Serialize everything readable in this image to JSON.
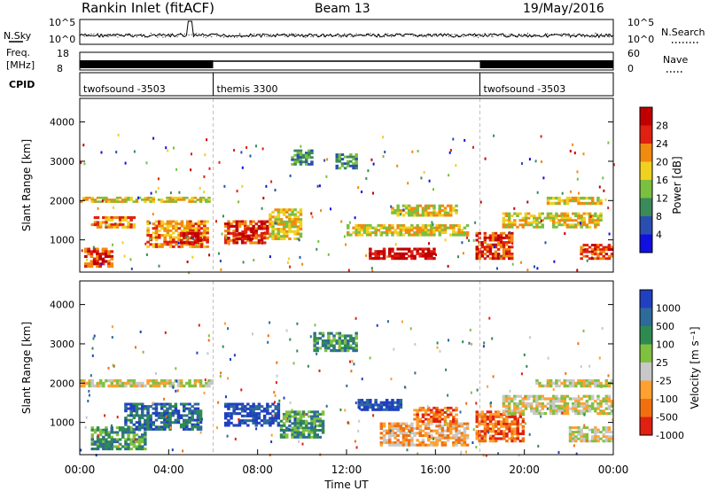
{
  "header": {
    "title": "Rankin Inlet (fitACF)",
    "beam": "Beam 13",
    "date": "19/May/2016"
  },
  "chart_data": [
    {
      "type": "line",
      "panel": "noise",
      "left_label": "N.Sky",
      "right_label": "N.Search",
      "left_ticks": [
        "10^5",
        "10^0"
      ],
      "right_ticks": [
        "10^5",
        "10^0"
      ],
      "note": "sky noise (solid) and search noise (dotted), roughly constant near 10^2 with spikes near 04:50"
    },
    {
      "type": "line",
      "panel": "frequency",
      "left_label_lines": [
        "Freq.",
        "[MHz]"
      ],
      "right_label": "Nave",
      "left_ticks": [
        "18",
        "8"
      ],
      "right_ticks": [
        "60",
        "0"
      ],
      "segments": [
        {
          "start": "00:00",
          "end": "06:00",
          "style": "dense"
        },
        {
          "start": "06:00",
          "end": "18:00",
          "style": "line"
        },
        {
          "start": "18:00",
          "end": "24:00",
          "style": "dense"
        }
      ]
    },
    {
      "type": "table",
      "panel": "cpid",
      "label": "CPID",
      "modes": [
        {
          "name": "twofsound -3503",
          "start": 0,
          "end": 6
        },
        {
          "name": "themis 3300",
          "start": 6,
          "end": 18
        },
        {
          "name": "twofsound -3503",
          "start": 18,
          "end": 24
        }
      ]
    },
    {
      "type": "heatmap",
      "panel": "power",
      "ylabel": "Slant Range [km]",
      "yticks": [
        1000,
        2000,
        3000,
        4000
      ],
      "ylim": [
        180,
        4600
      ],
      "xlim": [
        0,
        24
      ],
      "colorbar_label": "Power [dB]",
      "colorbar_ticks": [
        "4",
        "8",
        "12",
        "16",
        "20",
        "24",
        "28"
      ],
      "colors": [
        "#1010e0",
        "#2a4fb0",
        "#3b8a5a",
        "#7abf40",
        "#f0d020",
        "#f08a10",
        "#e02010",
        "#c00000"
      ],
      "regions": [
        {
          "t0": 0.2,
          "t1": 1.5,
          "r0": 300,
          "r1": 800,
          "level": 6
        },
        {
          "t0": 0.5,
          "t1": 2.5,
          "r0": 1300,
          "r1": 1600,
          "level": 5
        },
        {
          "t0": 0.0,
          "t1": 6.0,
          "r0": 1950,
          "r1": 2100,
          "level": 4
        },
        {
          "t0": 3.0,
          "t1": 5.8,
          "r0": 800,
          "r1": 1500,
          "level": 5
        },
        {
          "t0": 4.5,
          "t1": 5.5,
          "r0": 900,
          "r1": 1200,
          "level": 7
        },
        {
          "t0": 6.5,
          "t1": 8.5,
          "r0": 900,
          "r1": 1500,
          "level": 6
        },
        {
          "t0": 7.0,
          "t1": 7.8,
          "r0": 1000,
          "r1": 1300,
          "level": 7
        },
        {
          "t0": 8.5,
          "t1": 10.0,
          "r0": 1000,
          "r1": 1800,
          "level": 4
        },
        {
          "t0": 9.5,
          "t1": 10.5,
          "r0": 2900,
          "r1": 3300,
          "level": 2
        },
        {
          "t0": 11.5,
          "t1": 12.5,
          "r0": 2800,
          "r1": 3200,
          "level": 2
        },
        {
          "t0": 12.0,
          "t1": 17.5,
          "r0": 1100,
          "r1": 1400,
          "level": 4
        },
        {
          "t0": 13.0,
          "t1": 16.0,
          "r0": 500,
          "r1": 800,
          "level": 7
        },
        {
          "t0": 14.0,
          "t1": 17.0,
          "r0": 1600,
          "r1": 1900,
          "level": 4
        },
        {
          "t0": 17.8,
          "t1": 19.5,
          "r0": 500,
          "r1": 1200,
          "level": 6
        },
        {
          "t0": 19.0,
          "t1": 23.5,
          "r0": 1300,
          "r1": 1700,
          "level": 4
        },
        {
          "t0": 21.0,
          "t1": 23.5,
          "r0": 1900,
          "r1": 2100,
          "level": 4
        },
        {
          "t0": 22.5,
          "t1": 24.0,
          "r0": 500,
          "r1": 900,
          "level": 6
        }
      ]
    },
    {
      "type": "heatmap",
      "panel": "velocity",
      "ylabel": "Slant Range [km]",
      "yticks": [
        1000,
        2000,
        3000,
        4000
      ],
      "ylim": [
        180,
        4600
      ],
      "xlim": [
        0,
        24
      ],
      "xlabel": "Time UT",
      "xticks": [
        "00:00",
        "04:00",
        "08:00",
        "12:00",
        "16:00",
        "20:00",
        "00:00"
      ],
      "colorbar_label": "Velocity [m s⁻¹]",
      "colorbar_ticks": [
        "1000",
        "500",
        "100",
        "25",
        "-25",
        "-100",
        "-500",
        "-1000"
      ],
      "colors": [
        "#2040c0",
        "#2e6a9a",
        "#2f8a50",
        "#80c040",
        "#c8c8c8",
        "#ffa030",
        "#f07010",
        "#e02010"
      ],
      "regions": [
        {
          "t0": 0.0,
          "t1": 6.0,
          "r0": 1900,
          "r1": 2100,
          "level": 4
        },
        {
          "t0": 0.5,
          "t1": 3.0,
          "r0": 300,
          "r1": 900,
          "level": 2
        },
        {
          "t0": 2.0,
          "t1": 5.5,
          "r0": 800,
          "r1": 1500,
          "level": 1
        },
        {
          "t0": 6.5,
          "t1": 9.0,
          "r0": 900,
          "r1": 1500,
          "level": 0
        },
        {
          "t0": 9.0,
          "t1": 11.0,
          "r0": 600,
          "r1": 1300,
          "level": 2
        },
        {
          "t0": 10.5,
          "t1": 12.5,
          "r0": 2800,
          "r1": 3300,
          "level": 2
        },
        {
          "t0": 12.5,
          "t1": 14.5,
          "r0": 1300,
          "r1": 1600,
          "level": 0
        },
        {
          "t0": 13.5,
          "t1": 17.5,
          "r0": 400,
          "r1": 1000,
          "level": 5
        },
        {
          "t0": 15.0,
          "t1": 17.0,
          "r0": 1000,
          "r1": 1400,
          "level": 6
        },
        {
          "t0": 17.8,
          "t1": 20.0,
          "r0": 500,
          "r1": 1300,
          "level": 6
        },
        {
          "t0": 19.0,
          "t1": 24.0,
          "r0": 1200,
          "r1": 1700,
          "level": 4
        },
        {
          "t0": 20.5,
          "t1": 24.0,
          "r0": 1900,
          "r1": 2100,
          "level": 4
        },
        {
          "t0": 22.0,
          "t1": 24.0,
          "r0": 500,
          "r1": 900,
          "level": 4
        }
      ]
    }
  ]
}
